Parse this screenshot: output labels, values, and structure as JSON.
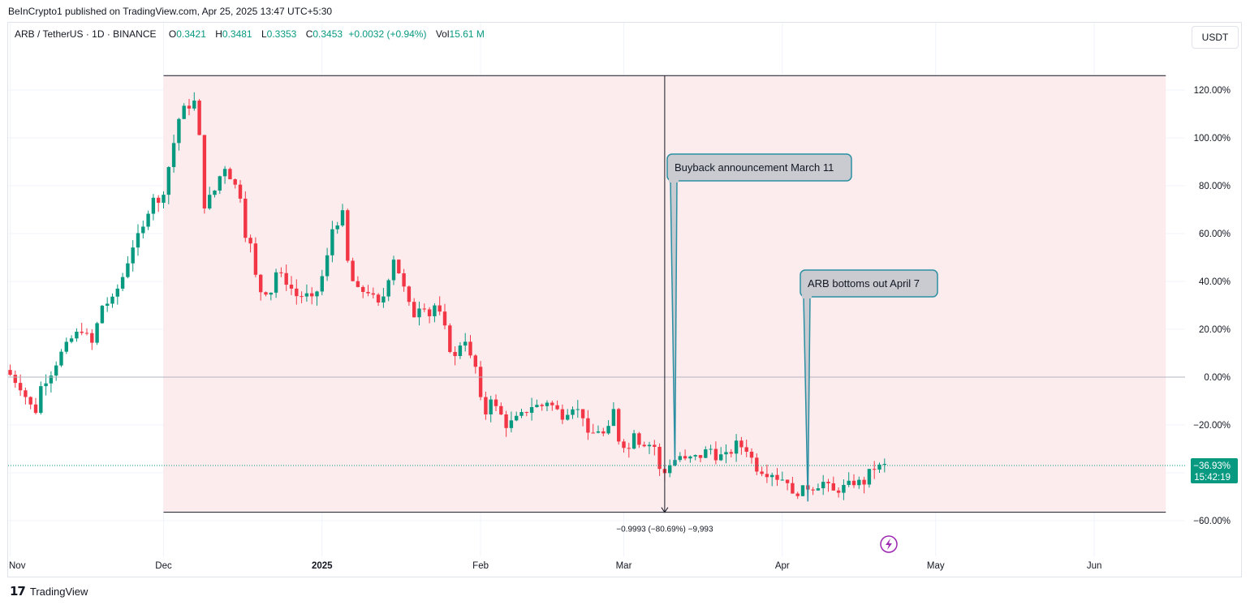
{
  "publisher_line": "BeInCrypto1 published on TradingView.com, Apr 25, 2025 13:47 UTC+5:30",
  "legend": {
    "symbol": "ARB / TetherUS · 1D · BINANCE",
    "o_label": "O",
    "o_value": "0.3421",
    "h_label": "H",
    "h_value": "0.3481",
    "l_label": "L",
    "l_value": "0.3353",
    "c_label": "C",
    "c_value": "0.3453",
    "change": "+0.0032 (+0.94%)",
    "vol_label": "Vol",
    "vol_value": "15.61 M"
  },
  "currency_button": "USDT",
  "logo_text": "TradingView",
  "colors": {
    "up": "#089981",
    "down": "#f23645",
    "range_fill": "#fdeced",
    "callout_fill": "#c9cbd1",
    "callout_border": "#2b8fa3",
    "last_price_badge": "#089981"
  },
  "chart_data": {
    "type": "candlestick",
    "y_scale": "percent",
    "ylim": [
      -62,
      128
    ],
    "y_ticks": [
      120,
      100,
      80,
      60,
      40,
      20,
      0,
      -20,
      -40,
      -60
    ],
    "y_tick_labels": [
      "120.00%",
      "100.00%",
      "80.00%",
      "60.00%",
      "40.00%",
      "20.00%",
      "0.00%",
      "−20.00%",
      "",
      "−60.00%"
    ],
    "x_ticks": [
      "Nov",
      "Dec",
      "2025",
      "Feb",
      "Mar",
      "Apr",
      "May",
      "Jun"
    ],
    "x_tick_days": [
      0,
      30,
      61,
      92,
      120,
      151,
      181,
      212
    ],
    "x_range_days": [
      -1,
      219
    ],
    "last_value_label": "−36.93%",
    "countdown_label": "15:42:19",
    "last_value": -36.93,
    "measure": {
      "label": "−0.9993 (−80.69%) −9,993",
      "start_day": 30,
      "end_day": 226,
      "top_value": 126,
      "bottom_value": -56.5,
      "marker_day": 128
    },
    "annotations": [
      {
        "text": "Buyback announcement March 11",
        "day": 130,
        "value": -37
      },
      {
        "text": "ARB bottoms out April 7",
        "day": 156,
        "value": -52
      }
    ],
    "anchor_points": [
      [
        0,
        1
      ],
      [
        2,
        -4
      ],
      [
        4,
        -12
      ],
      [
        5,
        -14
      ],
      [
        6,
        -4
      ],
      [
        8,
        2
      ],
      [
        10,
        10
      ],
      [
        12,
        16
      ],
      [
        14,
        20
      ],
      [
        16,
        14
      ],
      [
        18,
        30
      ],
      [
        20,
        32
      ],
      [
        22,
        42
      ],
      [
        24,
        55
      ],
      [
        26,
        62
      ],
      [
        27,
        70
      ],
      [
        28,
        76
      ],
      [
        29,
        72
      ],
      [
        30,
        78
      ],
      [
        31,
        88
      ],
      [
        33,
        108
      ],
      [
        34,
        112
      ],
      [
        36,
        115
      ],
      [
        37,
        100
      ],
      [
        38,
        72
      ],
      [
        40,
        78
      ],
      [
        41,
        84
      ],
      [
        42,
        88
      ],
      [
        43,
        84
      ],
      [
        44,
        80
      ],
      [
        45,
        76
      ],
      [
        46,
        60
      ],
      [
        47,
        55
      ],
      [
        48,
        42
      ],
      [
        49,
        36
      ],
      [
        51,
        36
      ],
      [
        52,
        44
      ],
      [
        54,
        40
      ],
      [
        56,
        34
      ],
      [
        58,
        34
      ],
      [
        59,
        32
      ],
      [
        60,
        36
      ],
      [
        61,
        42
      ],
      [
        62,
        50
      ],
      [
        63,
        62
      ],
      [
        65,
        68
      ],
      [
        66,
        48
      ],
      [
        67,
        40
      ],
      [
        68,
        36
      ],
      [
        70,
        36
      ],
      [
        71,
        33
      ],
      [
        72,
        30
      ],
      [
        73,
        34
      ],
      [
        74,
        42
      ],
      [
        75,
        50
      ],
      [
        76,
        44
      ],
      [
        78,
        30
      ],
      [
        79,
        26
      ],
      [
        80,
        30
      ],
      [
        81,
        30
      ],
      [
        82,
        26
      ],
      [
        83,
        30
      ],
      [
        84,
        26
      ],
      [
        85,
        20
      ],
      [
        86,
        12
      ],
      [
        87,
        8
      ],
      [
        88,
        14
      ],
      [
        89,
        16
      ],
      [
        90,
        8
      ],
      [
        91,
        4
      ],
      [
        92,
        -10
      ],
      [
        93,
        -15
      ],
      [
        94,
        -8
      ],
      [
        95,
        -13
      ],
      [
        96,
        -16
      ],
      [
        97,
        -20
      ],
      [
        98,
        -19
      ],
      [
        100,
        -16
      ],
      [
        101,
        -14
      ],
      [
        102,
        -12
      ],
      [
        104,
        -12
      ],
      [
        105,
        -10
      ],
      [
        107,
        -14
      ],
      [
        108,
        -16
      ],
      [
        110,
        -12
      ],
      [
        112,
        -16
      ],
      [
        113,
        -25
      ],
      [
        115,
        -22
      ],
      [
        116,
        -24
      ],
      [
        117,
        -22
      ],
      [
        118,
        -14
      ],
      [
        119,
        -26
      ],
      [
        121,
        -30
      ],
      [
        122,
        -22
      ],
      [
        123,
        -27
      ],
      [
        125,
        -28
      ],
      [
        126,
        -29
      ],
      [
        127,
        -39
      ],
      [
        128,
        -40
      ],
      [
        129,
        -36
      ],
      [
        131,
        -33
      ],
      [
        132,
        -35
      ],
      [
        133,
        -34
      ],
      [
        135,
        -33
      ],
      [
        136,
        -31
      ],
      [
        137,
        -30
      ],
      [
        138,
        -33
      ],
      [
        140,
        -33
      ],
      [
        141,
        -31
      ],
      [
        142,
        -28
      ],
      [
        143,
        -29
      ],
      [
        144,
        -30
      ],
      [
        146,
        -38
      ],
      [
        148,
        -40
      ],
      [
        149,
        -40
      ],
      [
        150,
        -42
      ],
      [
        152,
        -43
      ],
      [
        153,
        -50
      ],
      [
        154,
        -48
      ],
      [
        155,
        -47
      ],
      [
        156,
        -46
      ],
      [
        157,
        -46
      ],
      [
        158,
        -45
      ],
      [
        159,
        -44
      ],
      [
        160,
        -46
      ],
      [
        161,
        -48
      ],
      [
        162,
        -47
      ],
      [
        163,
        -46
      ],
      [
        164,
        -45
      ],
      [
        165,
        -44
      ],
      [
        166,
        -44
      ],
      [
        167,
        -44
      ],
      [
        168,
        -40
      ],
      [
        169,
        -38
      ],
      [
        170,
        -37.5
      ],
      [
        171,
        -37
      ]
    ]
  }
}
